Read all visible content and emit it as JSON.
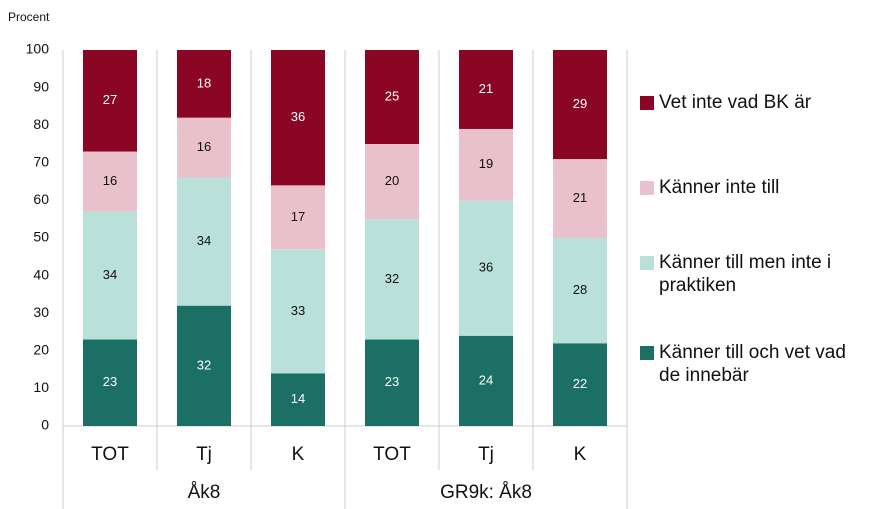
{
  "chart_data": {
    "type": "stacked_bar",
    "y_label": "Procent",
    "groups": [
      {
        "label": "Åk8",
        "categories": [
          "TOT",
          "Tj",
          "K"
        ]
      },
      {
        "label": "GR9k: Åk8",
        "categories": [
          "TOT",
          "Tj",
          "K"
        ]
      }
    ],
    "series": [
      {
        "name": "Känner till och vet vad de innebär",
        "color": "#1b6f64",
        "values": [
          23,
          32,
          14,
          23,
          24,
          22
        ]
      },
      {
        "name": "Känner till men inte i praktiken",
        "color": "#b9e1da",
        "values": [
          34,
          34,
          33,
          32,
          36,
          28
        ]
      },
      {
        "name": "Känner inte till",
        "color": "#e8c1cc",
        "values": [
          16,
          16,
          17,
          20,
          19,
          21
        ]
      },
      {
        "name": "Vet inte vad BK är",
        "color": "#8a0624",
        "values": [
          27,
          18,
          36,
          25,
          21,
          29
        ]
      }
    ],
    "ylim": [
      0,
      100
    ],
    "yticks": [
      0,
      10,
      20,
      30,
      40,
      50,
      60,
      70,
      80,
      90,
      100
    ],
    "legend": "right"
  }
}
